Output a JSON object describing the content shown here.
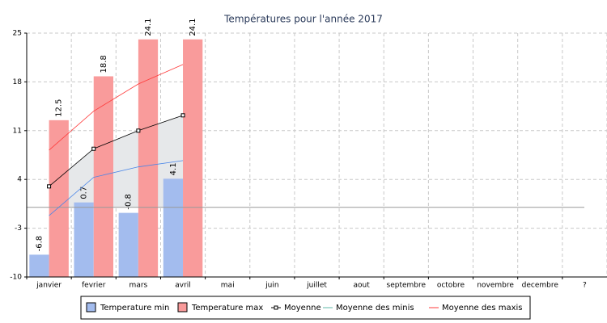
{
  "chart_data": {
    "type": "bar",
    "title": "Températures pour l'année 2017",
    "categories": [
      "janvier",
      "fevrier",
      "mars",
      "avril",
      "mai",
      "juin",
      "juillet",
      "aout",
      "septembre",
      "octobre",
      "novembre",
      "decembre",
      "?"
    ],
    "ylim": [
      -10,
      25
    ],
    "yticks": [
      -10,
      -3,
      4,
      11,
      18,
      25
    ],
    "grid": true,
    "series": [
      {
        "name": "Temperature min",
        "type": "bar",
        "color": "#a3bcee",
        "values": [
          -6.8,
          0.7,
          -0.8,
          4.1,
          null,
          null,
          null,
          null,
          null,
          null,
          null,
          null,
          null
        ]
      },
      {
        "name": "Temperature max",
        "type": "bar",
        "color": "#f99b9b",
        "values": [
          12.5,
          18.8,
          24.1,
          24.1,
          null,
          null,
          null,
          null,
          null,
          null,
          null,
          null,
          null
        ]
      },
      {
        "name": "Moyenne",
        "type": "line",
        "color": "#000000",
        "marker": "square",
        "area": "#e6e8ea",
        "values": [
          3.0,
          8.4,
          11.0,
          13.2,
          null,
          null,
          null,
          null,
          null,
          null,
          null,
          null,
          null
        ]
      },
      {
        "name": "Moyenne des minis",
        "type": "line",
        "color": "#4a86e8",
        "values": [
          -1.2,
          4.3,
          5.8,
          6.7,
          null,
          null,
          null,
          null,
          null,
          null,
          null,
          null,
          null
        ]
      },
      {
        "name": "Moyenne des maxis",
        "type": "line",
        "color": "#ff3b3b",
        "values": [
          8.2,
          13.8,
          17.7,
          20.5,
          null,
          null,
          null,
          null,
          null,
          null,
          null,
          null,
          null
        ]
      }
    ]
  }
}
